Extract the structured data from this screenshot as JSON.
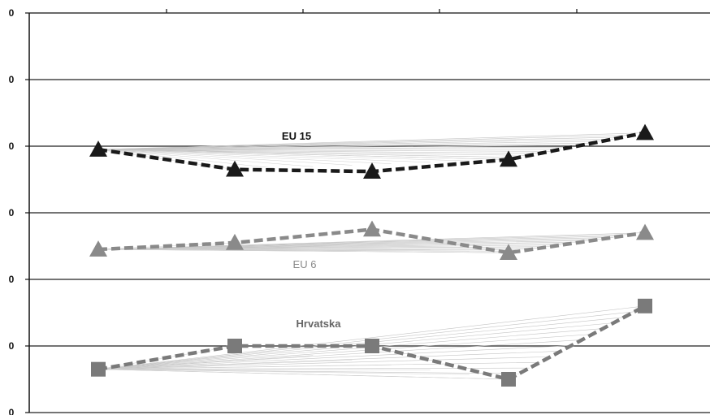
{
  "chart_data": {
    "type": "line",
    "title": "",
    "xlabel": "",
    "ylabel": "",
    "x": [
      1,
      2,
      3,
      4,
      5
    ],
    "y_tick_labels": [
      "0",
      "0",
      "0",
      "0",
      "0",
      "0",
      "0"
    ],
    "ylim": [
      0,
      6
    ],
    "grid": true,
    "series": [
      {
        "name": "EU 15",
        "values": [
          3.95,
          3.65,
          3.62,
          3.8,
          4.2
        ],
        "marker": "triangle",
        "color": "#1a1a1a",
        "label_color": "#111111"
      },
      {
        "name": "EU 6",
        "values": [
          2.45,
          2.55,
          2.75,
          2.4,
          2.7
        ],
        "marker": "triangle",
        "color": "#8a8a8a",
        "label_color": "#8a8a8a"
      },
      {
        "name": "Hrvatska",
        "values": [
          0.65,
          1.0,
          1.0,
          0.5,
          1.6
        ],
        "marker": "square",
        "color": "#7a7a7a",
        "label_color": "#666666"
      }
    ]
  }
}
